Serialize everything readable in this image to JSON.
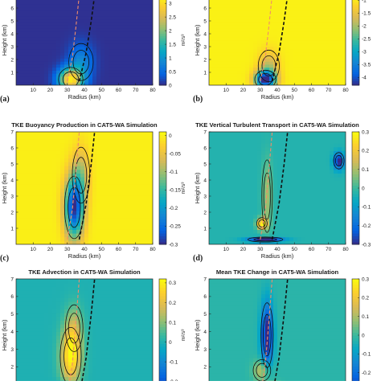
{
  "figure": {
    "colormap": [
      "#352a87",
      "#0363e1",
      "#1485d4",
      "#06a7c6",
      "#38b99e",
      "#92bf73",
      "#d9ba56",
      "#fcce2e",
      "#f9fb0e"
    ]
  },
  "chart_data": [
    {
      "type": "heatmap",
      "panel_label": "(a)",
      "title": "",
      "xlabel": "Radius (km)",
      "ylabel": "Height (km)",
      "xlim": [
        0,
        80
      ],
      "ylim": [
        0,
        7
      ],
      "xticks": [
        "10",
        "20",
        "30",
        "40",
        "50",
        "60",
        "70",
        "80"
      ],
      "yticks": [
        "1",
        "2",
        "3",
        "4",
        "5",
        "6"
      ],
      "colorbar": {
        "ticks": [
          "0",
          "0.5",
          "1",
          "1.5",
          "2",
          "2.5",
          "3"
        ],
        "range": [
          0,
          3.3
        ],
        "unit": "m²/s³",
        "background": 0.05
      },
      "features": [
        {
          "r": 32,
          "z": 0.45,
          "sr": 7,
          "sz": 0.9,
          "amp": 3.0
        },
        {
          "r": 38,
          "z": 1.8,
          "sr": 7,
          "sz": 1.4,
          "amp": 0.8
        }
      ],
      "dashed_lines": [
        {
          "color": "#f08c6a",
          "points": [
            [
              30,
              0.3
            ],
            [
              33,
              2.2
            ],
            [
              35,
              4.5
            ],
            [
              37,
              7
            ]
          ]
        },
        {
          "color": "#111111",
          "points": [
            [
              37,
              0.3
            ],
            [
              41,
              2.5
            ],
            [
              44,
              5
            ],
            [
              46,
              7
            ]
          ]
        }
      ]
    },
    {
      "type": "heatmap",
      "panel_label": "(b)",
      "title": "",
      "xlabel": "Radius (km)",
      "ylabel": "Height (km)",
      "xlim": [
        0,
        80
      ],
      "ylim": [
        0,
        7
      ],
      "xticks": [
        "10",
        "20",
        "30",
        "40",
        "50",
        "60",
        "70",
        "80"
      ],
      "yticks": [
        "1",
        "2",
        "3",
        "4",
        "5",
        "6"
      ],
      "colorbar": {
        "ticks": [
          "-1",
          "-1.5",
          "-2",
          "-2.5",
          "-3",
          "-3.5",
          "-4"
        ],
        "range": [
          -4.3,
          -0.8
        ],
        "unit": "",
        "background": -0.9
      },
      "features": [
        {
          "r": 33,
          "z": 0.45,
          "sr": 6,
          "sz": 0.7,
          "amp": -3.4
        },
        {
          "r": 35,
          "z": 1.5,
          "sr": 6,
          "sz": 1.2,
          "amp": -0.9
        }
      ],
      "dashed_lines": [
        {
          "color": "#f08c6a",
          "points": [
            [
              30,
              0.3
            ],
            [
              33,
              2.2
            ],
            [
              35,
              4.5
            ],
            [
              37,
              7
            ]
          ]
        },
        {
          "color": "#111111",
          "points": [
            [
              37,
              0.3
            ],
            [
              41,
              2.5
            ],
            [
              44,
              5
            ],
            [
              46,
              7
            ]
          ]
        }
      ]
    },
    {
      "type": "heatmap",
      "panel_label": "(c)",
      "title": "TKE Buoyancy Production in CAT5-WA Simulation",
      "xlabel": "Radius (km)",
      "ylabel": "Height (km)",
      "xlim": [
        0,
        80
      ],
      "ylim": [
        0,
        7
      ],
      "xticks": [
        "10",
        "20",
        "30",
        "40",
        "50",
        "60",
        "70",
        "80"
      ],
      "yticks": [
        "1",
        "2",
        "3",
        "4",
        "5",
        "6",
        "7"
      ],
      "colorbar": {
        "ticks": [
          "0",
          "-0.05",
          "-0.1",
          "-0.15",
          "-0.2",
          "-0.25",
          "-0.3"
        ],
        "range": [
          -0.3,
          0.01
        ],
        "unit": "m²/s³",
        "background": 0.0
      },
      "features": [
        {
          "r": 34,
          "z": 2.3,
          "sr": 5.5,
          "sz": 1.9,
          "amp": -0.29
        },
        {
          "r": 38,
          "z": 4.3,
          "sr": 5,
          "sz": 1.7,
          "amp": -0.08
        }
      ],
      "dashed_lines": [
        {
          "color": "#f08c6a",
          "points": [
            [
              30,
              0.3
            ],
            [
              33,
              2.2
            ],
            [
              35,
              4.5
            ],
            [
              37,
              7
            ]
          ]
        },
        {
          "color": "#111111",
          "points": [
            [
              37,
              0.3
            ],
            [
              41,
              2.5
            ],
            [
              44,
              5
            ],
            [
              46,
              7
            ]
          ]
        }
      ]
    },
    {
      "type": "heatmap",
      "panel_label": "(d)",
      "title": "TKE Vertical Turbulent Transport in CAT5-WA Simulation",
      "xlabel": "Radius (km)",
      "ylabel": "Height (km)",
      "xlim": [
        0,
        80
      ],
      "ylim": [
        0,
        7
      ],
      "xticks": [
        "10",
        "20",
        "30",
        "40",
        "50",
        "60",
        "70",
        "80"
      ],
      "yticks": [
        "1",
        "2",
        "3",
        "4",
        "5",
        "6",
        "7"
      ],
      "colorbar": {
        "ticks": [
          "0.3",
          "0.2",
          "0.1",
          "0",
          "-0.1",
          "-0.2",
          "-0.3"
        ],
        "range": [
          -0.3,
          0.3
        ],
        "unit": "",
        "background": -0.03
      },
      "features": [
        {
          "r": 31,
          "z": 1.3,
          "sr": 3,
          "sz": 0.35,
          "amp": 0.33
        },
        {
          "r": 33,
          "z": 0.3,
          "sr": 10,
          "sz": 0.15,
          "amp": -0.35
        },
        {
          "r": 34,
          "z": 3.0,
          "sr": 3,
          "sz": 2.2,
          "amp": 0.12
        },
        {
          "r": 76,
          "z": 5.2,
          "sr": 3,
          "sz": 0.5,
          "amp": -0.3
        }
      ],
      "dashed_lines": [
        {
          "color": "#f08c6a",
          "points": [
            [
              30,
              0.3
            ],
            [
              33,
              2.2
            ],
            [
              35,
              4.5
            ],
            [
              37,
              7
            ]
          ]
        },
        {
          "color": "#111111",
          "points": [
            [
              37,
              0.3
            ],
            [
              41,
              2.5
            ],
            [
              44,
              5
            ],
            [
              46,
              7
            ]
          ]
        }
      ]
    },
    {
      "type": "heatmap",
      "panel_label": "",
      "title": "TKE Advection in CAT5-WA Simulation",
      "xlabel": "",
      "ylabel": "Height (km)",
      "xlim": [
        0,
        80
      ],
      "ylim": [
        0.6,
        7
      ],
      "xticks": [],
      "yticks": [
        "1",
        "2",
        "3",
        "4",
        "5",
        "6",
        "7"
      ],
      "colorbar": {
        "ticks": [
          "0.3",
          "0.2",
          "0.1",
          "0",
          "-0.1",
          "-0.2"
        ],
        "range": [
          -0.25,
          0.32
        ],
        "unit": "m²/s³",
        "background": 0.0
      },
      "features": [
        {
          "r": 32,
          "z": 2.6,
          "sr": 6,
          "sz": 1.6,
          "amp": 0.3
        },
        {
          "r": 34,
          "z": 4.2,
          "sr": 5,
          "sz": 1.3,
          "amp": 0.12
        },
        {
          "r": 28,
          "z": 0.8,
          "sr": 6,
          "sz": 0.3,
          "amp": -0.25
        }
      ],
      "dashed_lines": [
        {
          "color": "#f08c6a",
          "points": [
            [
              30,
              0.3
            ],
            [
              33,
              2.2
            ],
            [
              35,
              4.5
            ],
            [
              37,
              7
            ]
          ]
        },
        {
          "color": "#111111",
          "points": [
            [
              37,
              0.3
            ],
            [
              41,
              2.5
            ],
            [
              44,
              5
            ],
            [
              46,
              7
            ]
          ]
        }
      ]
    },
    {
      "type": "heatmap",
      "panel_label": "",
      "title": "Mean TKE Change in CAT5-WA Simulation",
      "xlabel": "",
      "ylabel": "Height (km)",
      "xlim": [
        0,
        80
      ],
      "ylim": [
        0.6,
        7
      ],
      "xticks": [],
      "yticks": [
        "1",
        "2",
        "3",
        "4",
        "5",
        "6",
        "7"
      ],
      "colorbar": {
        "ticks": [
          "0.3",
          "0.2",
          "0.1",
          "0",
          "-0.1",
          "-0.2",
          "-0.3"
        ],
        "range": [
          -0.3,
          0.3
        ],
        "unit": "",
        "background": -0.02
      },
      "features": [
        {
          "r": 34,
          "z": 3.8,
          "sr": 3.5,
          "sz": 1.8,
          "amp": -0.32
        },
        {
          "r": 31,
          "z": 1.8,
          "sr": 5,
          "sz": 0.6,
          "amp": 0.15
        },
        {
          "r": 36,
          "z": 0.8,
          "sr": 6,
          "sz": 0.3,
          "amp": 0.3
        }
      ],
      "dashed_lines": [
        {
          "color": "#f08c6a",
          "points": [
            [
              30,
              0.3
            ],
            [
              33,
              2.2
            ],
            [
              35,
              4.5
            ],
            [
              37,
              7
            ]
          ]
        },
        {
          "color": "#111111",
          "points": [
            [
              37,
              0.3
            ],
            [
              41,
              2.5
            ],
            [
              44,
              5
            ],
            [
              46,
              7
            ]
          ]
        }
      ]
    }
  ]
}
